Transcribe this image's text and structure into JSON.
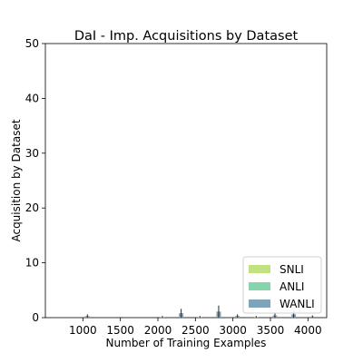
{
  "chart_data": {
    "type": "bar",
    "title": "DaI - Imp. Acquisitions by Dataset",
    "xlabel": "Number of Training Examples",
    "ylabel": "Acquisition by Dataset",
    "xlim": [
      500,
      4250
    ],
    "ylim": [
      0,
      50
    ],
    "xticks": [
      1000,
      1500,
      2000,
      2500,
      3000,
      3500,
      4000
    ],
    "yticks": [
      0,
      10,
      20,
      30,
      40,
      50
    ],
    "legend_position": "lower-right",
    "x": [
      1000,
      2000,
      2250,
      2500,
      2750,
      3000,
      3250,
      3500,
      3750,
      4000
    ],
    "series": [
      {
        "name": "SNLI",
        "color": "#c2e281",
        "values": [
          0,
          0,
          0,
          0,
          0,
          0,
          0,
          0,
          0,
          0
        ],
        "errors": [
          0,
          0,
          0,
          0,
          0,
          0,
          0,
          0,
          0,
          0
        ]
      },
      {
        "name": "ANLI",
        "color": "#86d4ac",
        "values": [
          0,
          0,
          0,
          0,
          0,
          0,
          0,
          0,
          0,
          0
        ],
        "errors": [
          0,
          0,
          0,
          0,
          0,
          0,
          0,
          0,
          0,
          0
        ]
      },
      {
        "name": "WANLI",
        "color": "#7fa3b8",
        "values": [
          0.3,
          0.1,
          0.8,
          0.1,
          1.1,
          0.3,
          0.1,
          0.4,
          0.6,
          0.2
        ],
        "errors": [
          0.3,
          0.2,
          0.8,
          0.2,
          1.1,
          0.3,
          0.2,
          0.4,
          0.6,
          0.2
        ]
      }
    ]
  }
}
